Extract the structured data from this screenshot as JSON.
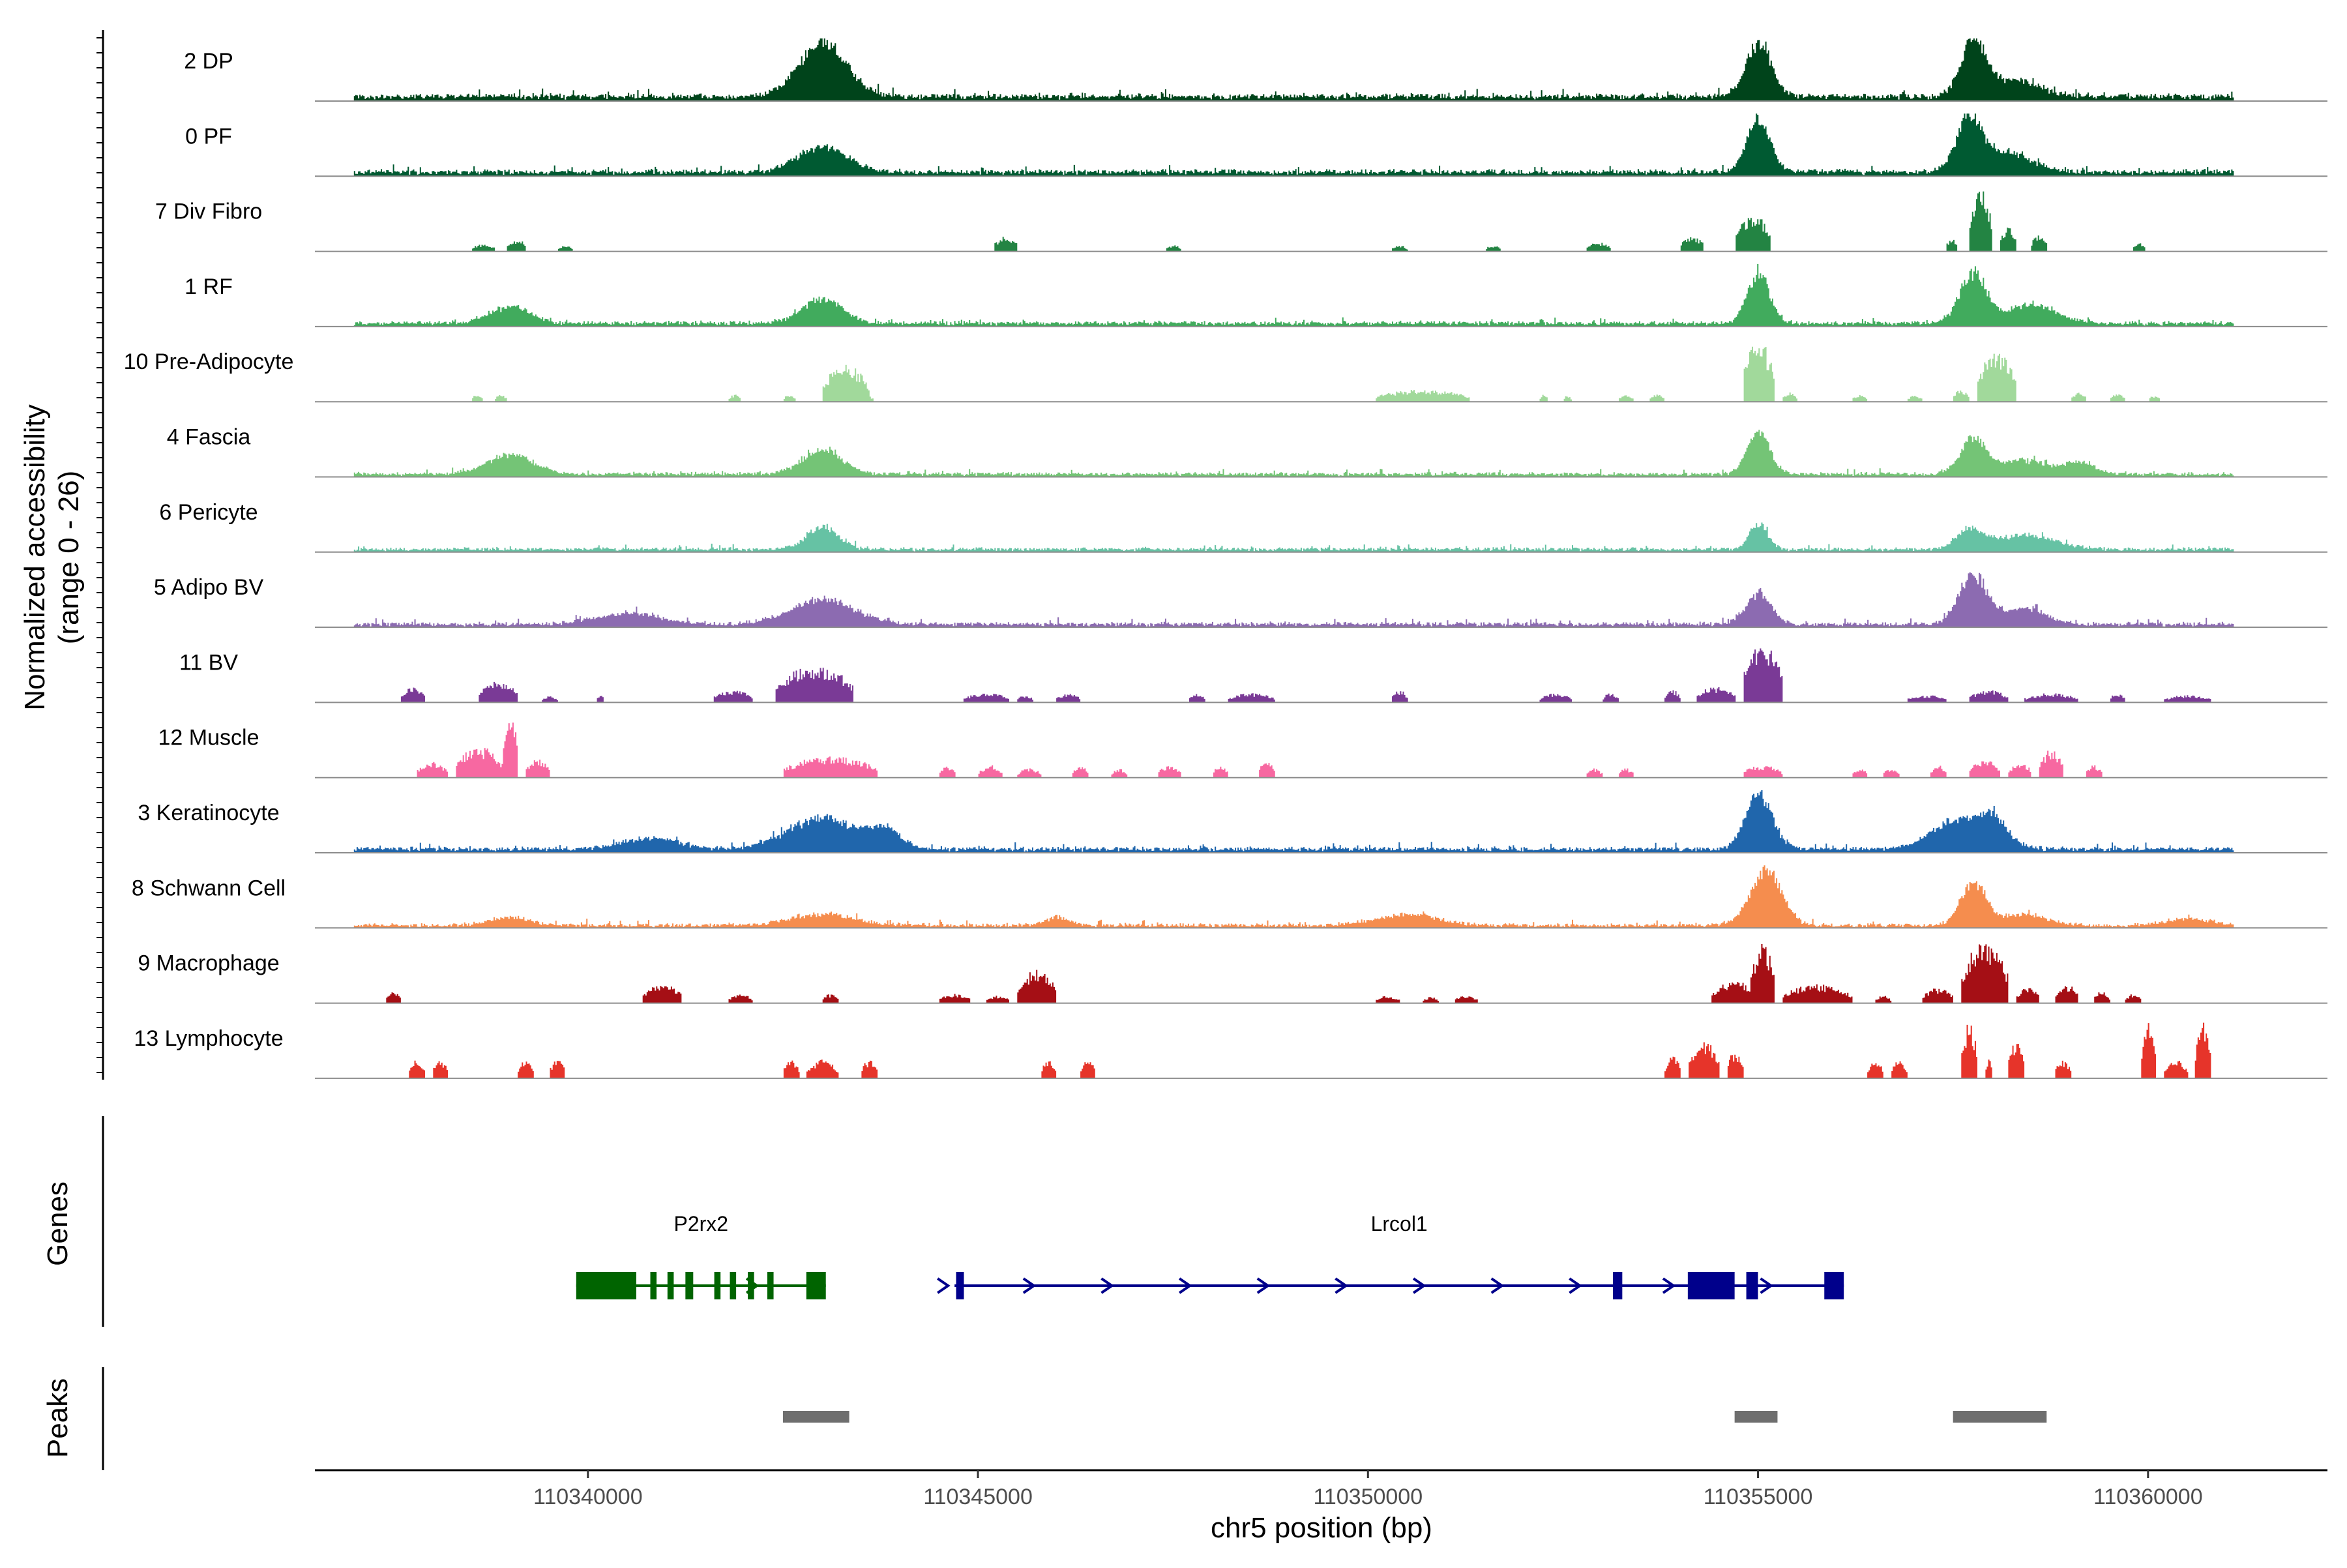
{
  "chart_data": {
    "type": "area",
    "title": "",
    "xlabel": "chr5 position (bp)",
    "ylabel": "Normalized accessibility",
    "ylabel_sub": "(range 0 - 26)",
    "xlim": [
      110336500,
      110362300
    ],
    "x_ticks": [
      110340000,
      110345000,
      110350000,
      110355000,
      110360000
    ],
    "x_tick_labels": [
      "110340000",
      "110345000",
      "110350000",
      "110355000",
      "110360000"
    ],
    "y_range": [
      0,
      26
    ],
    "grid": false,
    "tracks": [
      {
        "name": "2 DP",
        "color": "#00441b",
        "sparse": false,
        "base": 0.05,
        "noise": 0.06,
        "peaks": [
          [
            110343000,
            300,
            1.0
          ],
          [
            110355000,
            160,
            1.0
          ],
          [
            110357750,
            160,
            1.0
          ],
          [
            110358300,
            300,
            0.3
          ]
        ]
      },
      {
        "name": "0 PF",
        "color": "#005a32",
        "sparse": false,
        "base": 0.05,
        "noise": 0.05,
        "peaks": [
          [
            110343000,
            320,
            0.45
          ],
          [
            110355000,
            150,
            0.95
          ],
          [
            110357700,
            160,
            1.0
          ],
          [
            110358200,
            300,
            0.35
          ]
        ]
      },
      {
        "name": "7 Div Fibro",
        "color": "#238443",
        "sparse": true,
        "segments": [
          [
            110338500,
            110338800,
            0.12
          ],
          [
            110338950,
            110339200,
            0.2
          ],
          [
            110339600,
            110339800,
            0.1
          ],
          [
            110345200,
            110345500,
            0.25
          ],
          [
            110347400,
            110347600,
            0.1
          ],
          [
            110350300,
            110350500,
            0.1
          ],
          [
            110351500,
            110351700,
            0.1
          ],
          [
            110352800,
            110353100,
            0.15
          ],
          [
            110354000,
            110354300,
            0.25
          ],
          [
            110354700,
            110355150,
            0.6
          ],
          [
            110357400,
            110357550,
            0.2
          ],
          [
            110357700,
            110358000,
            1.0
          ],
          [
            110358100,
            110358300,
            0.4
          ],
          [
            110358500,
            110358700,
            0.3
          ],
          [
            110359800,
            110359950,
            0.15
          ]
        ]
      },
      {
        "name": "1 RF",
        "color": "#41ab5d",
        "sparse": false,
        "base": 0.04,
        "noise": 0.04,
        "peaks": [
          [
            110339000,
            250,
            0.3
          ],
          [
            110343000,
            250,
            0.45
          ],
          [
            110355000,
            140,
            0.9
          ],
          [
            110357750,
            170,
            0.9
          ],
          [
            110358500,
            300,
            0.35
          ]
        ]
      },
      {
        "name": "10 Pre-Adipocyte",
        "color": "#a1d99b",
        "sparse": true,
        "segments": [
          [
            110338500,
            110338650,
            0.12
          ],
          [
            110338800,
            110338950,
            0.12
          ],
          [
            110341800,
            110341950,
            0.12
          ],
          [
            110342500,
            110342650,
            0.12
          ],
          [
            110343100,
            110343250,
            0.12
          ],
          [
            110343450,
            110343650,
            0.12
          ],
          [
            110343000,
            110343600,
            0.6
          ],
          [
            110350100,
            110351300,
            0.2
          ],
          [
            110352200,
            110352300,
            0.12
          ],
          [
            110352500,
            110352600,
            0.1
          ],
          [
            110353200,
            110353400,
            0.12
          ],
          [
            110353600,
            110353800,
            0.12
          ],
          [
            110354800,
            110355200,
            1.0
          ],
          [
            110355300,
            110355500,
            0.15
          ],
          [
            110356200,
            110356400,
            0.12
          ],
          [
            110356900,
            110357100,
            0.1
          ],
          [
            110357500,
            110357700,
            0.2
          ],
          [
            110357800,
            110358300,
            0.8
          ],
          [
            110359000,
            110359200,
            0.15
          ],
          [
            110359500,
            110359700,
            0.12
          ],
          [
            110360000,
            110360150,
            0.1
          ]
        ]
      },
      {
        "name": "4 Fascia",
        "color": "#74c476",
        "sparse": false,
        "base": 0.03,
        "noise": 0.04,
        "peaks": [
          [
            110339000,
            300,
            0.35
          ],
          [
            110343000,
            250,
            0.45
          ],
          [
            110355000,
            140,
            0.8
          ],
          [
            110357750,
            160,
            0.65
          ],
          [
            110358400,
            300,
            0.25
          ],
          [
            110359100,
            200,
            0.2
          ]
        ]
      },
      {
        "name": "6 Pericyte",
        "color": "#66c2a4",
        "sparse": false,
        "base": 0.03,
        "noise": 0.04,
        "peaks": [
          [
            110343000,
            200,
            0.4
          ],
          [
            110355000,
            120,
            0.45
          ],
          [
            110357700,
            160,
            0.35
          ],
          [
            110358400,
            400,
            0.25
          ]
        ]
      },
      {
        "name": "5 Adipo BV",
        "color": "#8c6bb1",
        "sparse": false,
        "base": 0.03,
        "noise": 0.05,
        "peaks": [
          [
            110340500,
            400,
            0.2
          ],
          [
            110343000,
            400,
            0.45
          ],
          [
            110355000,
            160,
            0.55
          ],
          [
            110357750,
            180,
            0.9
          ],
          [
            110358400,
            250,
            0.3
          ]
        ]
      },
      {
        "name": "11 BV",
        "color": "#7a3a96",
        "sparse": true,
        "segments": [
          [
            110337600,
            110337900,
            0.25
          ],
          [
            110338600,
            110339100,
            0.35
          ],
          [
            110339400,
            110339600,
            0.1
          ],
          [
            110340100,
            110340200,
            0.12
          ],
          [
            110341600,
            110342100,
            0.2
          ],
          [
            110342400,
            110343400,
            0.6
          ],
          [
            110344800,
            110345400,
            0.15
          ],
          [
            110345500,
            110345700,
            0.12
          ],
          [
            110346000,
            110346300,
            0.15
          ],
          [
            110347700,
            110347900,
            0.15
          ],
          [
            110348200,
            110348800,
            0.15
          ],
          [
            110350300,
            110350500,
            0.2
          ],
          [
            110352200,
            110352600,
            0.15
          ],
          [
            110353000,
            110353200,
            0.15
          ],
          [
            110353800,
            110354000,
            0.2
          ],
          [
            110354800,
            110355300,
            1.0
          ],
          [
            110354200,
            110354700,
            0.25
          ],
          [
            110356900,
            110357400,
            0.12
          ],
          [
            110357700,
            110358200,
            0.2
          ],
          [
            110358400,
            110359100,
            0.15
          ],
          [
            110359500,
            110359700,
            0.15
          ],
          [
            110360200,
            110360800,
            0.12
          ]
        ]
      },
      {
        "name": "12 Muscle",
        "color": "#f768a1",
        "sparse": true,
        "segments": [
          [
            110337800,
            110338200,
            0.25
          ],
          [
            110338300,
            110338900,
            0.5
          ],
          [
            110338900,
            110339100,
            1.0
          ],
          [
            110339200,
            110339500,
            0.3
          ],
          [
            110342500,
            110343700,
            0.35
          ],
          [
            110344500,
            110344700,
            0.2
          ],
          [
            110345000,
            110345300,
            0.2
          ],
          [
            110345500,
            110345800,
            0.15
          ],
          [
            110346200,
            110346400,
            0.2
          ],
          [
            110346700,
            110346900,
            0.15
          ],
          [
            110347300,
            110347600,
            0.2
          ],
          [
            110348000,
            110348200,
            0.2
          ],
          [
            110348600,
            110348800,
            0.3
          ],
          [
            110352800,
            110353000,
            0.15
          ],
          [
            110353200,
            110353400,
            0.15
          ],
          [
            110354800,
            110355300,
            0.2
          ],
          [
            110356200,
            110356400,
            0.15
          ],
          [
            110356600,
            110356800,
            0.15
          ],
          [
            110357200,
            110357400,
            0.2
          ],
          [
            110357700,
            110358100,
            0.3
          ],
          [
            110358200,
            110358500,
            0.25
          ],
          [
            110358600,
            110358900,
            0.45
          ],
          [
            110359200,
            110359400,
            0.2
          ]
        ]
      },
      {
        "name": "3 Keratinocyte",
        "color": "#2066ac",
        "sparse": false,
        "base": 0.04,
        "noise": 0.05,
        "peaks": [
          [
            110340800,
            350,
            0.2
          ],
          [
            110343000,
            450,
            0.55
          ],
          [
            110343800,
            200,
            0.3
          ],
          [
            110355000,
            170,
            1.0
          ],
          [
            110357500,
            300,
            0.5
          ],
          [
            110358000,
            200,
            0.5
          ]
        ]
      },
      {
        "name": "8 Schwann Cell",
        "color": "#f58d4e",
        "sparse": false,
        "base": 0.02,
        "noise": 0.05,
        "peaks": [
          [
            110339000,
            250,
            0.15
          ],
          [
            110343000,
            400,
            0.2
          ],
          [
            110346000,
            150,
            0.15
          ],
          [
            110350500,
            400,
            0.2
          ],
          [
            110355100,
            200,
            1.0
          ],
          [
            110357750,
            160,
            0.75
          ],
          [
            110358400,
            300,
            0.2
          ],
          [
            110360500,
            300,
            0.12
          ]
        ]
      },
      {
        "name": "9 Macrophage",
        "color": "#a50f15",
        "sparse": true,
        "segments": [
          [
            110337400,
            110337600,
            0.2
          ],
          [
            110340700,
            110341200,
            0.3
          ],
          [
            110341800,
            110342100,
            0.15
          ],
          [
            110343000,
            110343200,
            0.15
          ],
          [
            110344500,
            110344900,
            0.15
          ],
          [
            110345100,
            110345400,
            0.12
          ],
          [
            110345500,
            110346000,
            0.55
          ],
          [
            110350100,
            110350400,
            0.12
          ],
          [
            110350700,
            110350900,
            0.1
          ],
          [
            110351100,
            110351400,
            0.12
          ],
          [
            110354400,
            110355000,
            0.35
          ],
          [
            110354900,
            110355200,
            1.0
          ],
          [
            110355300,
            110356200,
            0.3
          ],
          [
            110356500,
            110356700,
            0.12
          ],
          [
            110357100,
            110357500,
            0.25
          ],
          [
            110357600,
            110358200,
            1.0
          ],
          [
            110358300,
            110358600,
            0.25
          ],
          [
            110358800,
            110359100,
            0.3
          ],
          [
            110359300,
            110359500,
            0.2
          ],
          [
            110359700,
            110359900,
            0.15
          ]
        ]
      },
      {
        "name": "13 Lymphocyte",
        "color": "#e6342a",
        "sparse": true,
        "segments": [
          [
            110337700,
            110337900,
            0.3
          ],
          [
            110338000,
            110338200,
            0.3
          ],
          [
            110339100,
            110339300,
            0.3
          ],
          [
            110339500,
            110339700,
            0.3
          ],
          [
            110342500,
            110342700,
            0.3
          ],
          [
            110342800,
            110343200,
            0.3
          ],
          [
            110343500,
            110343700,
            0.3
          ],
          [
            110345800,
            110346000,
            0.3
          ],
          [
            110346300,
            110346500,
            0.3
          ],
          [
            110353800,
            110354000,
            0.35
          ],
          [
            110354100,
            110354500,
            0.6
          ],
          [
            110354600,
            110354800,
            0.45
          ],
          [
            110356400,
            110356600,
            0.3
          ],
          [
            110356700,
            110356900,
            0.3
          ],
          [
            110357600,
            110357800,
            0.9
          ],
          [
            110357900,
            110358000,
            0.3
          ],
          [
            110358200,
            110358400,
            0.6
          ],
          [
            110358800,
            110359000,
            0.3
          ],
          [
            110359900,
            110360100,
            0.9
          ],
          [
            110360200,
            110360500,
            0.3
          ],
          [
            110360600,
            110360800,
            0.9
          ]
        ]
      }
    ],
    "genes_label": "Genes",
    "genes": [
      {
        "name": "P2rx2",
        "color": "#006400",
        "start": 110339850,
        "end": 110343050,
        "exons": [
          [
            110339850,
            110340620
          ],
          [
            110340800,
            110340880
          ],
          [
            110341020,
            110341100
          ],
          [
            110341250,
            110341350
          ],
          [
            110341620,
            110341700
          ],
          [
            110341820,
            110341900
          ],
          [
            110342050,
            110342130
          ],
          [
            110342300,
            110342380
          ],
          [
            110342800,
            110343050
          ]
        ],
        "arrows": []
      },
      {
        "name": "Lrcol1",
        "color": "#00008b",
        "start": 110344700,
        "end": 110356100,
        "exons": [
          [
            110344720,
            110344820
          ],
          [
            110353140,
            110353260
          ],
          [
            110354100,
            110354700
          ],
          [
            110354850,
            110355000
          ],
          [
            110355850,
            110356100
          ]
        ],
        "arrows": [
          110344550,
          110345650,
          110346650,
          110347650,
          110348650,
          110349650,
          110350650,
          110351650,
          110352650,
          110353850,
          110355100
        ]
      },
      {
        "name": "",
        "color": "#006400",
        "start": 110342050,
        "end": 110342130,
        "exons": [],
        "arrows": [
          110342100
        ]
      }
    ],
    "peaks_label": "Peaks",
    "peaks": [
      [
        110342500,
        110343350
      ],
      [
        110354700,
        110355250
      ],
      [
        110357500,
        110358700
      ]
    ],
    "peak_color": "#6e6e6e"
  }
}
